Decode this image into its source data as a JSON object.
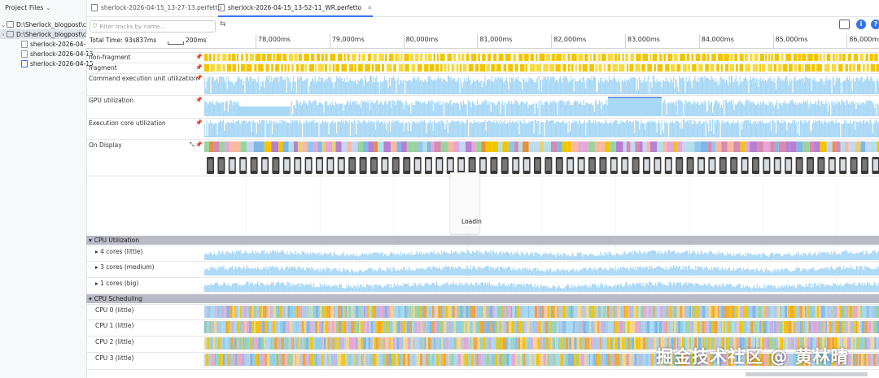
{
  "sidebar": {
    "title": "Project Files",
    "items": [
      {
        "label": "D:\\Sherlock_blogpost\\c",
        "kind": "folder"
      },
      {
        "label": "sherlock-2026-04-15",
        "kind": "file"
      },
      {
        "label": "sherlock-2026-04-15",
        "kind": "file"
      },
      {
        "label": "sherlock-2026-04-15",
        "kind": "file"
      },
      {
        "label": "sherlock-2026-04-15",
        "kind": "file"
      }
    ]
  },
  "tabs": [
    {
      "label": "sherlock-2026-04-15_13-27-13.perfetto",
      "active": false
    },
    {
      "label": "sherlock-2026-04-15_13-52-11_WR.perfetto",
      "active": true
    }
  ],
  "toolbar": {
    "filter_placeholder": "Filter tracks by name..."
  },
  "ruler": {
    "total_time": "Total Time: 93s837ms",
    "scale": "200ms",
    "ticks": [
      "78,000ms",
      "79,000ms",
      "80,000ms",
      "81,000ms",
      "82,000ms",
      "83,000ms",
      "84,000ms",
      "85,000ms",
      "86,000ms"
    ]
  },
  "tracks": {
    "non_fragment": "non-fragment",
    "fragment": "fragment",
    "cmd_exec": "Command execution unit utilization",
    "gpu_util": "GPU utilization",
    "exec_core": "Execution core utilization",
    "on_display": "On Display",
    "loading": "Loadin"
  },
  "cpu_util": {
    "title": "CPU Utilization",
    "rows": [
      "4 cores (little)",
      "3 cores (medium)",
      "1 cores (big)"
    ]
  },
  "cpu_sched": {
    "title": "CPU Scheduling",
    "rows": [
      "CPU 0 (little)",
      "CPU 1 (little)",
      "CPU 2 (little)",
      "CPU 3 (little)"
    ]
  },
  "watermark": "掘金技术社区 @ 黄林晴",
  "colors": {
    "accent": "#3574f0",
    "util_fill": "#a9d8f5",
    "slice_yellow": "#f2c500",
    "group_header": "#b9bac4"
  }
}
